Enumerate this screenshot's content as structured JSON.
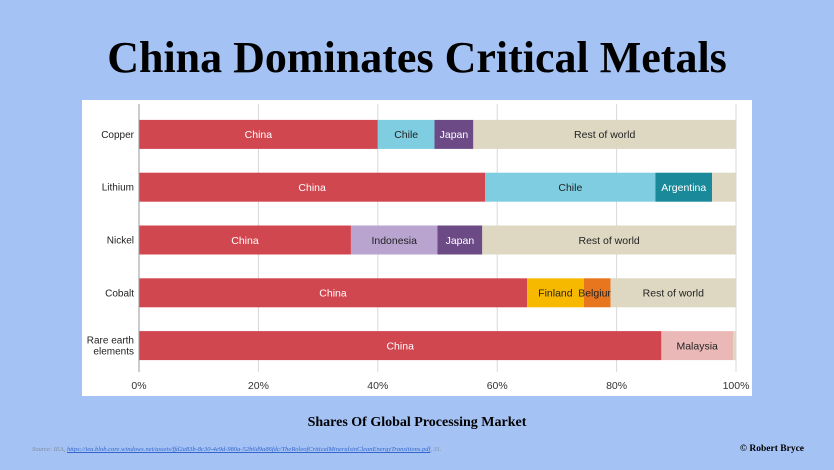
{
  "title": "China Dominates Critical Metals",
  "subtitle": "Shares Of Global Processing Market",
  "source": {
    "prefix": "Source: IEA,",
    "url": "https://iea.blob.core.windows.net/assets/ffd2a83b-8c30-4e9d-980a-52b6d9a86fdc/TheRoleofCriticalMineralsinCleanEnergyTransitions.pdf",
    "suffix": ", 31."
  },
  "copyright": "© Robert Bryce",
  "colors": {
    "background": "#a4c2f4",
    "china": "#d1474f",
    "chile": "#7ecde0",
    "japan": "#6b4a86",
    "rest": "#ded8c3",
    "argentina": "#1a8a9a",
    "indonesia": "#b9a3cf",
    "finland": "#f7b900",
    "belgium": "#e8761e",
    "malaysia": "#ebb8b8"
  },
  "chart_data": {
    "type": "bar",
    "orientation": "horizontal",
    "stacked": true,
    "xlim": [
      0,
      100
    ],
    "xticks": [
      "0%",
      "20%",
      "40%",
      "60%",
      "80%",
      "100%"
    ],
    "grid": true,
    "categories": [
      "Copper",
      "Lithium",
      "Nickel",
      "Cobalt",
      "Rare earth elements"
    ],
    "category_lines": [
      [
        "Copper"
      ],
      [
        "Lithium"
      ],
      [
        "Nickel"
      ],
      [
        "Cobalt"
      ],
      [
        "Rare earth",
        "elements"
      ]
    ],
    "rows": [
      {
        "category": "Copper",
        "segments": [
          {
            "label": "China",
            "value": 40,
            "color": "china"
          },
          {
            "label": "Chile",
            "value": 9.5,
            "color": "chile"
          },
          {
            "label": "Japan",
            "value": 6.5,
            "color": "japan"
          },
          {
            "label": "Rest of world",
            "value": 44,
            "color": "rest"
          }
        ]
      },
      {
        "category": "Lithium",
        "segments": [
          {
            "label": "China",
            "value": 58,
            "color": "china"
          },
          {
            "label": "Chile",
            "value": 28.5,
            "color": "chile"
          },
          {
            "label": "Argentina",
            "value": 9.5,
            "color": "argentina"
          },
          {
            "label": "",
            "value": 4,
            "color": "rest"
          }
        ]
      },
      {
        "category": "Nickel",
        "segments": [
          {
            "label": "China",
            "value": 35.5,
            "color": "china"
          },
          {
            "label": "Indonesia",
            "value": 14.5,
            "color": "indonesia"
          },
          {
            "label": "Japan",
            "value": 7.5,
            "color": "japan"
          },
          {
            "label": "Rest of world",
            "value": 42.5,
            "color": "rest"
          }
        ]
      },
      {
        "category": "Cobalt",
        "segments": [
          {
            "label": "China",
            "value": 65,
            "color": "china"
          },
          {
            "label": "Finland",
            "value": 9.5,
            "color": "finland"
          },
          {
            "label": "Belgium",
            "value": 4.5,
            "color": "belgium"
          },
          {
            "label": "Rest of world",
            "value": 21,
            "color": "rest"
          }
        ]
      },
      {
        "category": "Rare earth elements",
        "segments": [
          {
            "label": "China",
            "value": 87.5,
            "color": "china"
          },
          {
            "label": "Malaysia",
            "value": 12,
            "color": "malaysia"
          },
          {
            "label": "",
            "value": 0.5,
            "color": "rest"
          }
        ]
      }
    ]
  }
}
